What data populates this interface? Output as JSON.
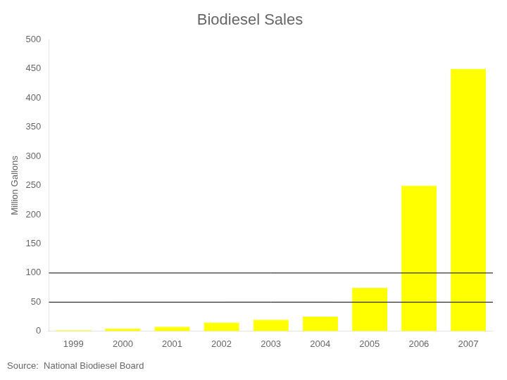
{
  "chart_data": {
    "type": "bar",
    "title": "Biodiesel Sales",
    "ylabel": "Million Gallons",
    "source": "Source:  National Biodiesel Board",
    "categories": [
      "1999",
      "2000",
      "2001",
      "2002",
      "2003",
      "2004",
      "2005",
      "2006",
      "2007"
    ],
    "values": [
      2,
      5,
      8,
      15,
      20,
      25,
      75,
      250,
      450
    ],
    "color": "#FFFF00",
    "ylim": [
      0,
      500
    ],
    "yticks": [
      0,
      50,
      100,
      150,
      200,
      250,
      300,
      350,
      400,
      450,
      500
    ],
    "grid": false,
    "hlines": [
      {
        "value": 50,
        "color": "#000000"
      },
      {
        "value": 100,
        "color": "#000000"
      }
    ]
  }
}
